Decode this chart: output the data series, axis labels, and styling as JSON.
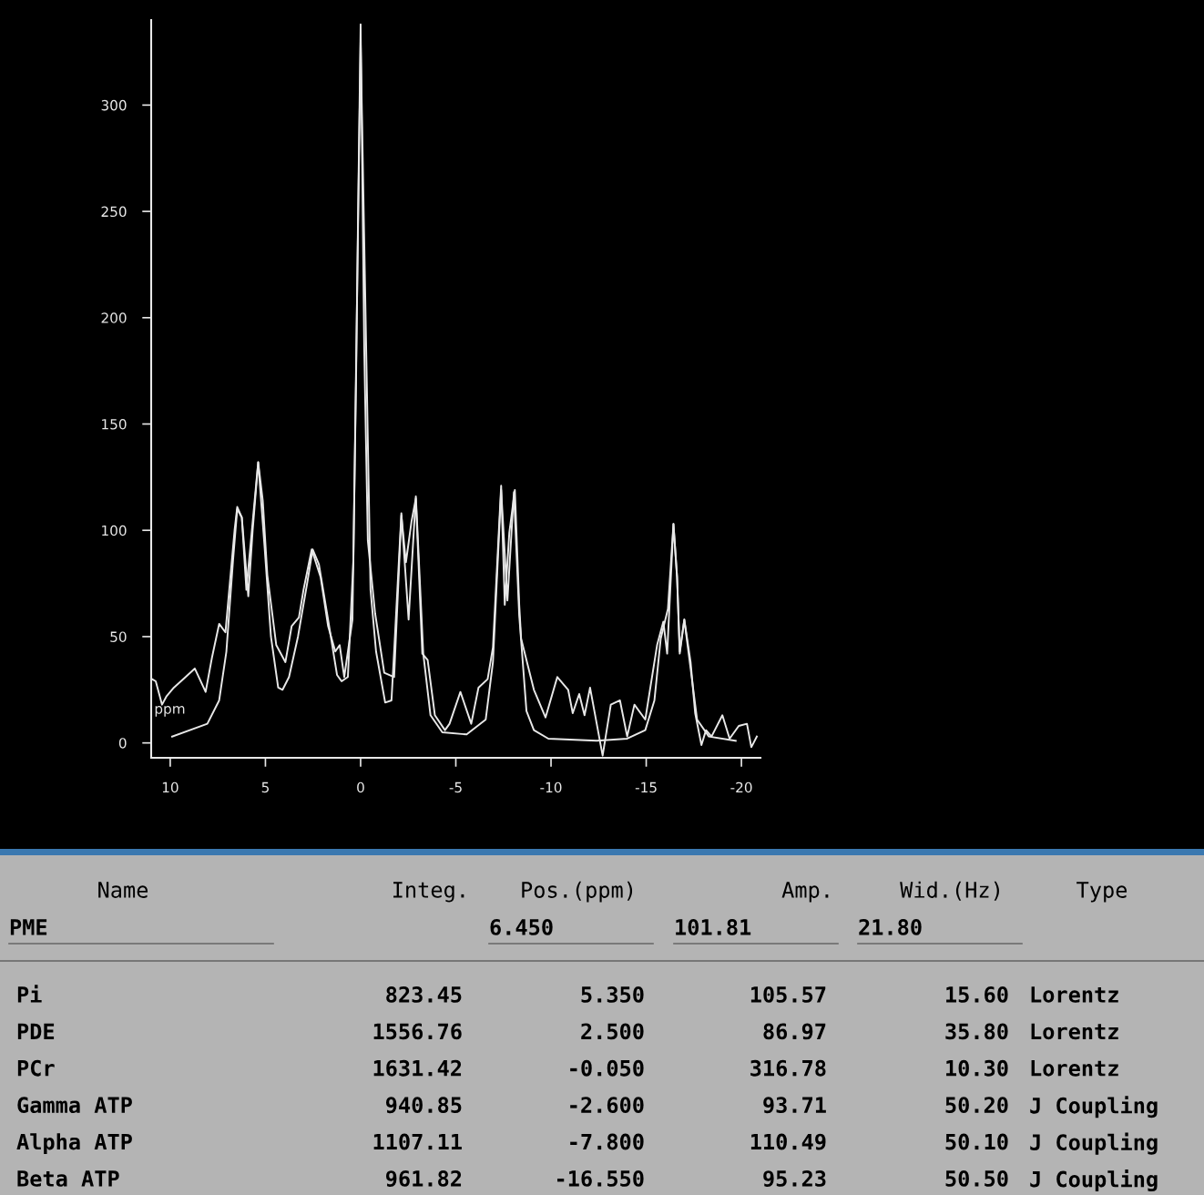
{
  "chart_data": [
    {
      "type": "line",
      "annotations": [
        "ppm"
      ],
      "xlim": [
        11,
        -21
      ],
      "ylim": [
        -7,
        340
      ],
      "xticks": [
        10,
        5,
        0,
        {
          "value": -5,
          "label": "-5"
        },
        {
          "value": -10,
          "label": "-10"
        },
        {
          "value": -15,
          "label": "-15"
        },
        {
          "value": -20,
          "label": "-20"
        }
      ],
      "yticks": [
        0,
        50,
        100,
        150,
        200,
        250,
        300
      ],
      "grid": false,
      "legend": false,
      "marker": "none",
      "line_style": "solid",
      "series": [
        {
          "color": "#e8e8e8",
          "x": [
            10.95,
            10.76,
            10.43,
            10.19,
            9.81,
            9.19,
            8.71,
            8.14,
            7.81,
            7.43,
            7.1,
            6.62,
            6.48,
            6.24,
            5.9,
            5.67,
            5.38,
            5.14,
            4.9,
            4.43,
            3.95,
            3.62,
            3.24,
            3.0,
            2.57,
            2.1,
            1.71,
            1.33,
            1.1,
            0.86,
            0.43,
            0.24,
            0.14,
            0.0,
            -0.19,
            -0.38,
            -0.76,
            -1.24,
            -1.76,
            -2.14,
            -2.38,
            -2.67,
            -2.9,
            -3.24,
            -3.52,
            -3.9,
            -4.43,
            -4.67,
            -5.24,
            -5.81,
            -6.19,
            -6.67,
            -6.95,
            -7.38,
            -7.57,
            -7.81,
            -8.1,
            -8.33,
            -8.43,
            -9.1,
            -9.71,
            -10.33,
            -10.9,
            -11.14,
            -11.48,
            -11.76,
            -12.05,
            -12.71,
            -13.14,
            -13.62,
            -14.0,
            -14.38,
            -14.95,
            -15.57,
            -15.9,
            -16.1,
            -16.43,
            -16.62,
            -16.76,
            -17.0,
            -17.33,
            -17.57,
            -17.9,
            -18.14,
            -18.43,
            -19.0,
            -19.38,
            -19.86,
            -20.29,
            -20.52,
            -20.81
          ],
          "values": [
            30,
            29,
            18,
            22,
            26,
            31,
            35,
            24,
            40,
            56,
            52,
            100,
            111,
            106,
            69,
            100,
            132,
            114,
            79,
            46,
            38,
            55,
            59,
            72,
            91,
            78,
            55,
            43,
            46,
            31,
            58,
            171,
            244,
            338,
            185,
            95,
            61,
            33,
            31,
            107,
            85,
            104,
            115,
            42,
            39,
            13,
            6,
            9,
            24,
            9,
            26,
            30,
            45,
            121,
            65,
            99,
            119,
            65,
            49,
            25,
            12,
            31,
            25,
            14,
            23,
            13,
            26,
            -6,
            18,
            20,
            3,
            18,
            11,
            46,
            57,
            42,
            103,
            78,
            42,
            58,
            38,
            14,
            -1,
            6,
            3,
            13,
            2,
            8,
            9,
            -2,
            3
          ]
        },
        {
          "color": "#e8e8e8",
          "x": [
            9.9,
            8.05,
            7.43,
            7.05,
            6.7,
            6.48,
            6.24,
            6.0,
            5.38,
            5.05,
            4.71,
            4.33,
            4.1,
            3.76,
            3.29,
            2.81,
            2.52,
            2.19,
            1.71,
            1.24,
            1.0,
            0.67,
            0.38,
            0.0,
            -0.52,
            -0.81,
            -1.29,
            -1.62,
            -1.76,
            -2.14,
            -2.52,
            -2.9,
            -3.29,
            -3.67,
            -4.29,
            -5.57,
            -6.57,
            -6.95,
            -7.38,
            -7.71,
            -8.05,
            -8.33,
            -8.71,
            -9.1,
            -9.86,
            -12.4,
            -14.0,
            -14.95,
            -15.43,
            -15.76,
            -16.14,
            -16.43,
            -16.62,
            -16.76,
            -17.0,
            -17.33,
            -17.67,
            -18.29,
            -19.7
          ],
          "values": [
            3,
            9,
            20,
            43,
            86,
            110,
            106,
            72,
            132,
            93,
            50,
            26,
            25,
            31,
            50,
            75,
            91,
            84,
            58,
            32,
            29,
            31,
            86,
            330,
            72,
            43,
            19,
            20,
            43,
            108,
            58,
            116,
            42,
            13,
            5,
            4,
            11,
            38,
            119,
            67,
            118,
            60,
            15,
            6,
            2,
            1,
            2,
            6,
            20,
            49,
            63,
            103,
            78,
            43,
            58,
            35,
            11,
            3,
            1
          ]
        }
      ]
    },
    {
      "type": "other",
      "annotations": [
        "Name",
        "Integ.",
        "Pos.(ppm)",
        "Amp.",
        "Wid.(Hz)",
        "Type",
        "PME",
        "6.450",
        "101.81",
        "21.80",
        "Pi",
        "823.45",
        "5.350",
        "105.57",
        "15.60",
        "Lorentz",
        "PDE",
        "1556.76",
        "2.500",
        "86.97",
        "35.80",
        "Lorentz",
        "PCr",
        "1631.42",
        "-0.050",
        "316.78",
        "10.30",
        "Lorentz",
        "Gamma ATP",
        "940.85",
        "-2.600",
        "93.71",
        "50.20",
        "J Coupling",
        "Alpha ATP",
        "1107.11",
        "-7.800",
        "110.49",
        "50.10",
        "J Coupling",
        "Beta ATP",
        "961.82",
        "-16.550",
        "95.23",
        "50.50",
        "J Coupling"
      ]
    }
  ]
}
